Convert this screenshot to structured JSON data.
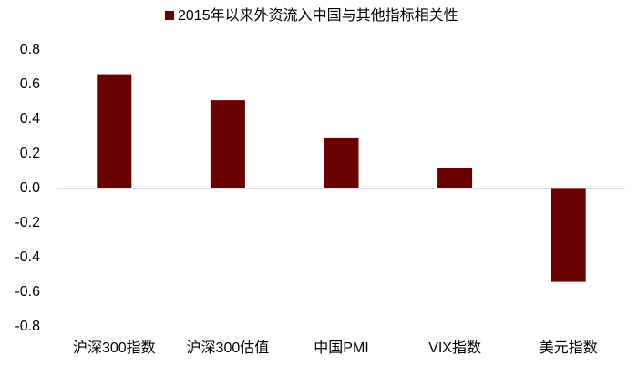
{
  "chart_data": {
    "type": "bar",
    "categories": [
      "沪深300指数",
      "沪深300估值",
      "中国PMI",
      "VIX指数",
      "美元指数"
    ],
    "series": [
      {
        "name": "2015年以来外资流入中国与其他指标相关性",
        "color": "#6b0000",
        "values": [
          0.66,
          0.51,
          0.29,
          0.12,
          -0.54
        ]
      }
    ],
    "ylim": [
      -0.8,
      0.8
    ],
    "yticks": [
      -0.8,
      -0.6,
      -0.4,
      -0.2,
      {
        "value": 0,
        "label": "0.0"
      },
      0.2,
      0.4,
      0.6,
      0.8
    ],
    "legend": "top"
  }
}
